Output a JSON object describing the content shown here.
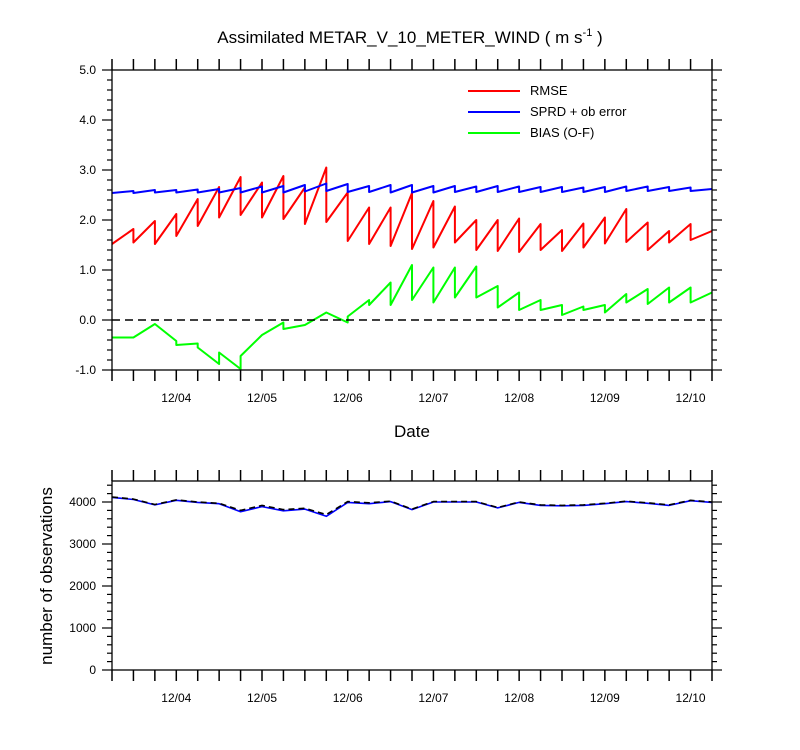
{
  "chart_data": [
    {
      "type": "line",
      "title": "Assimilated METAR_V_10_METER_WIND ( m s",
      "title_superscript": "-1",
      "title_close": " )",
      "xlabel": "Date",
      "ylabel": "",
      "ylim": [
        -1.0,
        5.0
      ],
      "xlim": [
        0,
        7
      ],
      "y_ticks": [
        "-1.0",
        "0.0",
        "1.0",
        "2.0",
        "3.0",
        "4.0",
        "5.0"
      ],
      "y_tick_values": [
        -1,
        0,
        1,
        2,
        3,
        4,
        5
      ],
      "x_ticks": [
        {
          "label": "12/04",
          "pos": 0.75
        },
        {
          "label": "12/05",
          "pos": 1.75
        },
        {
          "label": "12/06",
          "pos": 2.75
        },
        {
          "label": "12/07",
          "pos": 3.75
        },
        {
          "label": "12/08",
          "pos": 4.75
        },
        {
          "label": "12/09",
          "pos": 5.75
        },
        {
          "label": "12/10",
          "pos": 6.75
        }
      ],
      "reference_line": 0.0,
      "legend_position": "top-right",
      "series": [
        {
          "name": "RMSE",
          "color": "#ff0000",
          "x": [
            0,
            0.25,
            0.25,
            0.5,
            0.5,
            0.75,
            0.75,
            1.0,
            1.0,
            1.25,
            1.25,
            1.5,
            1.5,
            1.75,
            1.75,
            2.0,
            2.0,
            2.25,
            2.25,
            2.5,
            2.5,
            2.75,
            2.75,
            3.0,
            3.0,
            3.25,
            3.25,
            3.5,
            3.5,
            3.75,
            3.75,
            4.0,
            4.0,
            4.25,
            4.25,
            4.5,
            4.5,
            4.75,
            4.75,
            5.0,
            5.0,
            5.25,
            5.25,
            5.5,
            5.5,
            5.75,
            5.75,
            6.0,
            6.0,
            6.25,
            6.25,
            6.5,
            6.5,
            6.75,
            6.75,
            7.0
          ],
          "y": [
            1.52,
            1.82,
            1.55,
            1.98,
            1.52,
            2.12,
            1.68,
            2.42,
            1.88,
            2.66,
            2.05,
            2.86,
            2.1,
            2.75,
            2.05,
            2.88,
            2.02,
            2.65,
            1.92,
            3.05,
            1.96,
            2.55,
            1.58,
            2.25,
            1.52,
            2.25,
            1.48,
            2.54,
            1.42,
            2.38,
            1.45,
            2.27,
            1.55,
            2.0,
            1.4,
            2.0,
            1.38,
            2.03,
            1.36,
            1.92,
            1.4,
            1.8,
            1.38,
            1.93,
            1.45,
            2.05,
            1.53,
            2.22,
            1.56,
            1.95,
            1.4,
            1.78,
            1.55,
            1.92,
            1.6,
            1.78
          ]
        },
        {
          "name": "SPRD + ob error",
          "color": "#0000ff",
          "x": [
            0,
            0.25,
            0.25,
            0.5,
            0.5,
            0.75,
            0.75,
            1.0,
            1.0,
            1.25,
            1.25,
            1.5,
            1.5,
            1.75,
            1.75,
            2.0,
            2.0,
            2.25,
            2.25,
            2.5,
            2.5,
            2.75,
            2.75,
            3.0,
            3.0,
            3.25,
            3.25,
            3.5,
            3.5,
            3.75,
            3.75,
            4.0,
            4.0,
            4.25,
            4.25,
            4.5,
            4.5,
            4.75,
            4.75,
            5.0,
            5.0,
            5.25,
            5.25,
            5.5,
            5.5,
            5.75,
            5.75,
            6.0,
            6.0,
            6.25,
            6.25,
            6.5,
            6.5,
            6.75,
            6.75,
            7.0
          ],
          "y": [
            2.54,
            2.58,
            2.54,
            2.6,
            2.55,
            2.6,
            2.55,
            2.61,
            2.55,
            2.62,
            2.55,
            2.64,
            2.55,
            2.67,
            2.55,
            2.68,
            2.55,
            2.7,
            2.57,
            2.73,
            2.58,
            2.72,
            2.56,
            2.68,
            2.56,
            2.7,
            2.55,
            2.7,
            2.55,
            2.68,
            2.55,
            2.68,
            2.56,
            2.67,
            2.56,
            2.68,
            2.56,
            2.67,
            2.56,
            2.66,
            2.56,
            2.66,
            2.56,
            2.65,
            2.56,
            2.66,
            2.56,
            2.67,
            2.58,
            2.67,
            2.58,
            2.66,
            2.58,
            2.65,
            2.58,
            2.62
          ]
        },
        {
          "name": "BIAS (O-F)",
          "color": "#00ff00",
          "x": [
            0,
            0.25,
            0.25,
            0.5,
            0.5,
            0.75,
            0.75,
            1.0,
            1.0,
            1.25,
            1.25,
            1.5,
            1.5,
            1.75,
            1.75,
            2.0,
            2.0,
            2.25,
            2.25,
            2.5,
            2.5,
            2.75,
            2.75,
            3.0,
            3.0,
            3.25,
            3.25,
            3.5,
            3.5,
            3.75,
            3.75,
            4.0,
            4.0,
            4.25,
            4.25,
            4.5,
            4.5,
            4.75,
            4.75,
            5.0,
            5.0,
            5.25,
            5.25,
            5.5,
            5.5,
            5.75,
            5.75,
            6.0,
            6.0,
            6.25,
            6.25,
            6.5,
            6.5,
            6.75,
            6.75,
            7.0
          ],
          "y": [
            -0.35,
            -0.35,
            -0.35,
            -0.08,
            -0.08,
            -0.42,
            -0.5,
            -0.47,
            -0.55,
            -0.88,
            -0.65,
            -0.98,
            -0.72,
            -0.3,
            -0.3,
            -0.05,
            -0.18,
            -0.1,
            -0.1,
            0.15,
            0.15,
            -0.05,
            0.07,
            0.4,
            0.3,
            0.75,
            0.3,
            1.1,
            0.4,
            1.05,
            0.35,
            1.05,
            0.45,
            1.07,
            0.45,
            0.68,
            0.25,
            0.55,
            0.2,
            0.4,
            0.2,
            0.3,
            0.1,
            0.27,
            0.2,
            0.3,
            0.15,
            0.52,
            0.35,
            0.62,
            0.32,
            0.65,
            0.35,
            0.65,
            0.35,
            0.55
          ]
        }
      ]
    },
    {
      "type": "line",
      "title": "",
      "xlabel": "",
      "ylabel": "number of observations",
      "ylim": [
        0,
        4500
      ],
      "xlim": [
        0,
        7
      ],
      "y_ticks": [
        "0",
        "1000",
        "2000",
        "3000",
        "4000"
      ],
      "y_tick_values": [
        0,
        1000,
        2000,
        3000,
        4000
      ],
      "x_ticks": [
        {
          "label": "12/04",
          "pos": 0.75
        },
        {
          "label": "12/05",
          "pos": 1.75
        },
        {
          "label": "12/06",
          "pos": 2.75
        },
        {
          "label": "12/07",
          "pos": 3.75
        },
        {
          "label": "12/08",
          "pos": 4.75
        },
        {
          "label": "12/09",
          "pos": 5.75
        },
        {
          "label": "12/10",
          "pos": 6.75
        }
      ],
      "series": [
        {
          "color": "#0000ff",
          "dash": false,
          "x": [
            0,
            0.25,
            0.5,
            0.75,
            1.0,
            1.25,
            1.5,
            1.75,
            2.0,
            2.25,
            2.5,
            2.75,
            3.0,
            3.25,
            3.5,
            3.75,
            4.0,
            4.25,
            4.5,
            4.75,
            5.0,
            5.25,
            5.5,
            5.75,
            6.0,
            6.25,
            6.5,
            6.75,
            7.0
          ],
          "y": [
            4110,
            4060,
            3930,
            4040,
            3990,
            3960,
            3770,
            3890,
            3790,
            3830,
            3660,
            3990,
            3960,
            4010,
            3820,
            4000,
            4000,
            4000,
            3860,
            3990,
            3920,
            3910,
            3920,
            3960,
            4010,
            3970,
            3920,
            4030,
            3990
          ]
        },
        {
          "color": "#000000",
          "dash": true,
          "x": [
            0,
            0.25,
            0.5,
            0.75,
            1.0,
            1.25,
            1.5,
            1.75,
            2.0,
            2.25,
            2.5,
            2.75,
            3.0,
            3.25,
            3.5,
            3.75,
            4.0,
            4.25,
            4.5,
            4.75,
            5.0,
            5.25,
            5.5,
            5.75,
            6.0,
            6.25,
            6.5,
            6.75,
            7.0
          ],
          "y": [
            4120,
            4070,
            3940,
            4050,
            4000,
            3970,
            3800,
            3920,
            3820,
            3850,
            3700,
            4010,
            3980,
            4020,
            3830,
            4010,
            4010,
            4010,
            3870,
            4000,
            3930,
            3920,
            3930,
            3970,
            4020,
            3980,
            3930,
            4040,
            4000
          ]
        }
      ]
    }
  ]
}
